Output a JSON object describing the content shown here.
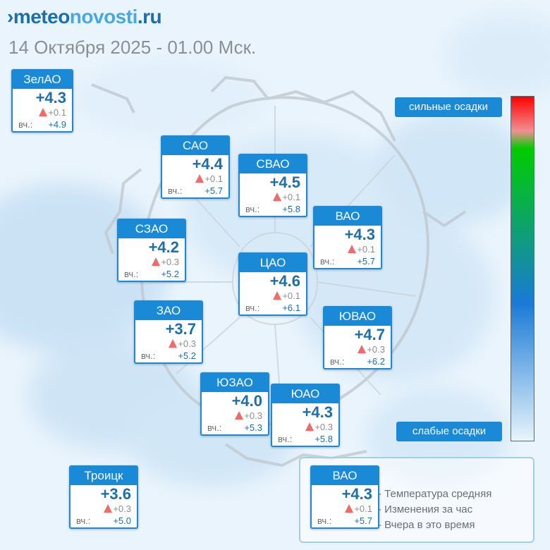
{
  "header": {
    "logo_parts": [
      "meteo",
      "novosti",
      ".ru"
    ],
    "datetime": "14 Октября 2025 - 01.00 Мск."
  },
  "labels": {
    "yesterday": "вч.:"
  },
  "districts": [
    {
      "name": "ЗелАО",
      "temp": "+4.3",
      "change": "+0.1",
      "yesterday": "+4.9"
    },
    {
      "name": "САО",
      "temp": "+4.4",
      "change": "+0.1",
      "yesterday": "+5.7"
    },
    {
      "name": "СВАО",
      "temp": "+4.5",
      "change": "+0.1",
      "yesterday": "+5.8"
    },
    {
      "name": "ВАО",
      "temp": "+4.3",
      "change": "+0.1",
      "yesterday": "+5.7"
    },
    {
      "name": "СЗАО",
      "temp": "+4.2",
      "change": "+0.3",
      "yesterday": "+5.2"
    },
    {
      "name": "ЦАО",
      "temp": "+4.6",
      "change": "+0.1",
      "yesterday": "+6.1"
    },
    {
      "name": "ЗАО",
      "temp": "+3.7",
      "change": "+0.3",
      "yesterday": "+5.2"
    },
    {
      "name": "ЮВАО",
      "temp": "+4.7",
      "change": "+0.3",
      "yesterday": "+6.2"
    },
    {
      "name": "ЮЗАО",
      "temp": "+4.0",
      "change": "+0.3",
      "yesterday": "+5.3"
    },
    {
      "name": "ЮАО",
      "temp": "+4.3",
      "change": "+0.3",
      "yesterday": "+5.8"
    },
    {
      "name": "Троицк",
      "temp": "+3.6",
      "change": "+0.3",
      "yesterday": "+5.0"
    }
  ],
  "precip_scale": {
    "high_label": "сильные осадки",
    "low_label": "слабые осадки"
  },
  "legend": {
    "example": {
      "name": "ВАО",
      "temp": "+4.3",
      "change": "+0.1",
      "yesterday": "+5.7"
    },
    "items": [
      "- Температура средняя",
      "- Изменения за час",
      "- Вчера в это время"
    ]
  },
  "colors": {
    "accent": "#1a8ad6",
    "temp_text": "#1c6fa8",
    "change_arrow": "#f06a6a",
    "map_water": "#cfe6f7"
  },
  "icons": {
    "change_arrow": "triangle-up-icon"
  }
}
